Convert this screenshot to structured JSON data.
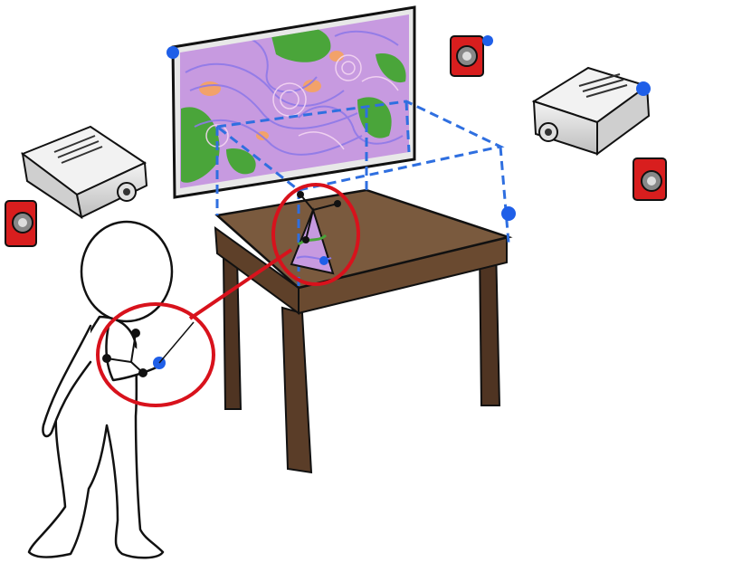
{
  "scene": {
    "background": "#ffffff",
    "colors": {
      "tracking_frame": "#2f6fe0",
      "marker": "#1f5fe8",
      "highlight_circle": "#d8121c",
      "table_top": "#7a5a3e",
      "table_legs": "#4f3422",
      "camera_body": "#d81e1e",
      "projector_body": "#d9d9d9",
      "flow_field_base": "#c79ae0",
      "land": "#4aa53a",
      "ink": "#111111"
    },
    "elements": {
      "display_screen": {
        "icon": "monitor-icon",
        "content": "flow-field-visualization"
      },
      "projectors": [
        "projector-icon",
        "projector-icon"
      ],
      "tracking_cameras": [
        "camera-icon",
        "camera-icon",
        "camera-icon"
      ],
      "tracked_cone": {
        "icon": "cone-icon"
      },
      "hand_tracker": {
        "icon": "hand-tracker-icon"
      },
      "person": {
        "icon": "person-icon"
      }
    }
  }
}
